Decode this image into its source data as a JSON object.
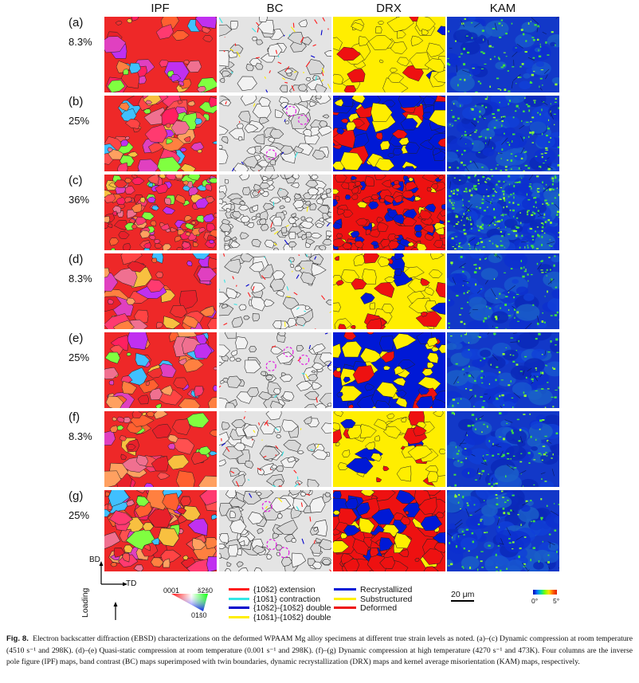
{
  "columns": [
    "IPF",
    "BC",
    "DRX",
    "KAM"
  ],
  "rows": [
    {
      "label": "(a)",
      "strain": "8.3%"
    },
    {
      "label": "(b)",
      "strain": "25%"
    },
    {
      "label": "(c)",
      "strain": "36%"
    },
    {
      "label": "(d)",
      "strain": "8.3%"
    },
    {
      "label": "(e)",
      "strain": "25%"
    },
    {
      "label": "(f)",
      "strain": "8.3%"
    },
    {
      "label": "(g)",
      "strain": "25%"
    }
  ],
  "axes": {
    "vertical": "BD",
    "horizontal": "TD",
    "loading": "Loading"
  },
  "ipf_legend": {
    "top_left": "0001",
    "top_right": "š2š0",
    "bottom": "01š0"
  },
  "twin_legend": [
    {
      "label": "{10š2} extension",
      "color": "#ff1a1a"
    },
    {
      "label": "{10š1} contraction",
      "color": "#33e6e6"
    },
    {
      "label": "{10š2}-{10š2} double",
      "color": "#0000cc"
    },
    {
      "label": "{10š1}-{10š2} double",
      "color": "#ffee00"
    }
  ],
  "drx_legend": [
    {
      "label": "Recrystallized",
      "color": "#0019d6"
    },
    {
      "label": "Substructured",
      "color": "#ffef00"
    },
    {
      "label": "Deformed",
      "color": "#ee1111"
    }
  ],
  "scale_bar": "20 μm",
  "kam_scale": {
    "min": "0°",
    "max": "5°"
  },
  "caption": {
    "label": "Fig. 8.",
    "text": "Electron backscatter diffraction (EBSD) characterizations on the deformed WPAAM Mg alloy specimens at different true strain levels as noted. (a)–(c) Dynamic compression at room temperature (4510 s⁻¹ and 298K). (d)–(e) Quasi-static compression at room temperature (0.001 s⁻¹ and 298K). (f)–(g) Dynamic compression at high temperature (4270 s⁻¹ and 473K). Four columns are the inverse pole figure (IPF) maps, band contrast (BC) maps superimposed with twin boundaries, dynamic recrystallization (DRX) maps and kernel average misorientation (KAM) maps, respectively."
  }
}
